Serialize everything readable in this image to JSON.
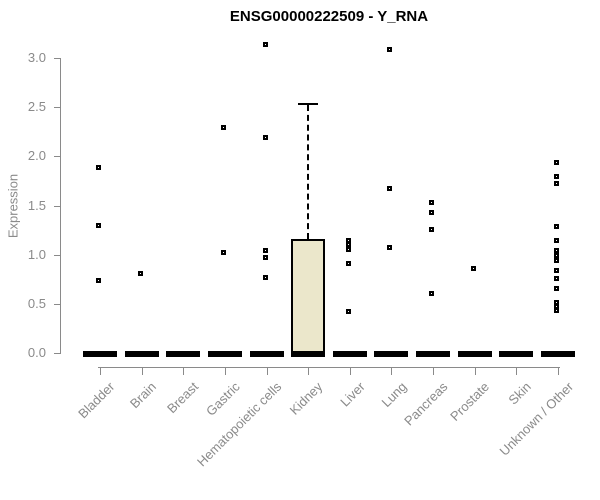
{
  "chart": {
    "title": "ENSG00000222509 - Y_RNA",
    "ylabel": "Expression"
  },
  "chart_data": {
    "type": "boxplot",
    "title": "ENSG00000222509 - Y_RNA",
    "xlabel": "",
    "ylabel": "Expression",
    "ylim": [
      0,
      3.2
    ],
    "yticks": [
      0.0,
      0.5,
      1.0,
      1.5,
      2.0,
      2.5,
      3.0
    ],
    "grid": false,
    "legend": false,
    "categories": [
      "Bladder",
      "Brain",
      "Breast",
      "Gastric",
      "Hematopoietic cells",
      "Kidney",
      "Liver",
      "Lung",
      "Pancreas",
      "Prostate",
      "Skin",
      "Unknown / Other"
    ],
    "boxes": [
      {
        "category": "Bladder",
        "median": 0,
        "q1": 0,
        "q3": 0,
        "whisker_low": 0,
        "whisker_high": 0,
        "outliers": [
          1.89,
          1.3,
          0.74
        ]
      },
      {
        "category": "Brain",
        "median": 0,
        "q1": 0,
        "q3": 0,
        "whisker_low": 0,
        "whisker_high": 0,
        "outliers": [
          0.81
        ]
      },
      {
        "category": "Breast",
        "median": 0,
        "q1": 0,
        "q3": 0,
        "whisker_low": 0,
        "whisker_high": 0,
        "outliers": []
      },
      {
        "category": "Gastric",
        "median": 0,
        "q1": 0,
        "q3": 0,
        "whisker_low": 0,
        "whisker_high": 0,
        "outliers": [
          2.29,
          1.02
        ]
      },
      {
        "category": "Hematopoietic cells",
        "median": 0,
        "q1": 0,
        "q3": 0,
        "whisker_low": 0,
        "whisker_high": 0,
        "outliers": [
          3.14,
          2.19,
          1.04,
          0.97,
          0.77
        ]
      },
      {
        "category": "Kidney",
        "median": 0,
        "q1": 0,
        "q3": 1.16,
        "whisker_low": 0,
        "whisker_high": 2.53,
        "outliers": []
      },
      {
        "category": "Liver",
        "median": 0,
        "q1": 0,
        "q3": 0,
        "whisker_low": 0,
        "whisker_high": 0,
        "outliers": [
          1.14,
          1.1,
          1.05,
          0.91,
          0.42
        ]
      },
      {
        "category": "Lung",
        "median": 0,
        "q1": 0,
        "q3": 0,
        "whisker_low": 0,
        "whisker_high": 0,
        "outliers": [
          3.09,
          1.67,
          1.07
        ]
      },
      {
        "category": "Pancreas",
        "median": 0,
        "q1": 0,
        "q3": 0,
        "whisker_low": 0,
        "whisker_high": 0,
        "outliers": [
          1.53,
          1.43,
          1.26,
          0.61
        ]
      },
      {
        "category": "Prostate",
        "median": 0,
        "q1": 0,
        "q3": 0,
        "whisker_low": 0,
        "whisker_high": 0,
        "outliers": [
          0.86
        ]
      },
      {
        "category": "Skin",
        "median": 0,
        "q1": 0,
        "q3": 0,
        "whisker_low": 0,
        "whisker_high": 0,
        "outliers": []
      },
      {
        "category": "Unknown / Other",
        "median": 0,
        "q1": 0,
        "q3": 0,
        "whisker_low": 0,
        "whisker_high": 0,
        "outliers": [
          1.94,
          1.8,
          1.72,
          1.29,
          1.14,
          1.04,
          0.99,
          0.94,
          0.84,
          0.76,
          0.66,
          0.51,
          0.47,
          0.43
        ]
      }
    ],
    "colors": {
      "box_fill": "#ebe7cb",
      "box_stroke": "#000000",
      "bar_color": "#000000",
      "marker_color": "#000000",
      "axis_color": "#8a8a8a",
      "title_color": "#000000"
    }
  }
}
